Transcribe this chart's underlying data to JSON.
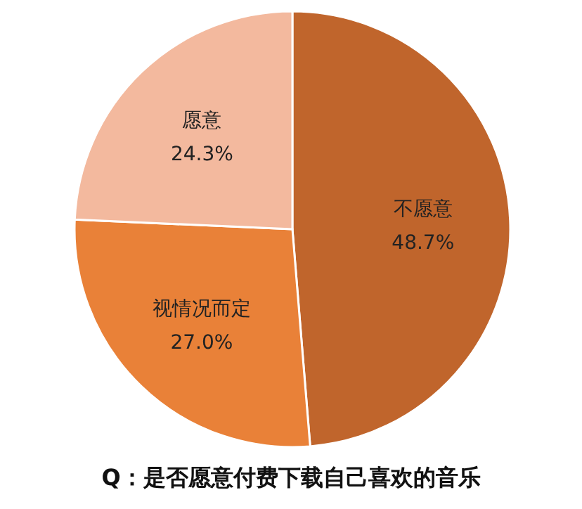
{
  "chart_data": {
    "type": "pie",
    "title": "Q：是否愿意付费下载自己喜欢的音乐",
    "categories": [
      "不愿意",
      "视情况而定",
      "愿意"
    ],
    "values": [
      48.7,
      27.0,
      24.3
    ],
    "colors": [
      "#c0652c",
      "#e98138",
      "#f3b99e"
    ],
    "value_labels": [
      "48.7%",
      "27.0%",
      "24.3%"
    ]
  }
}
